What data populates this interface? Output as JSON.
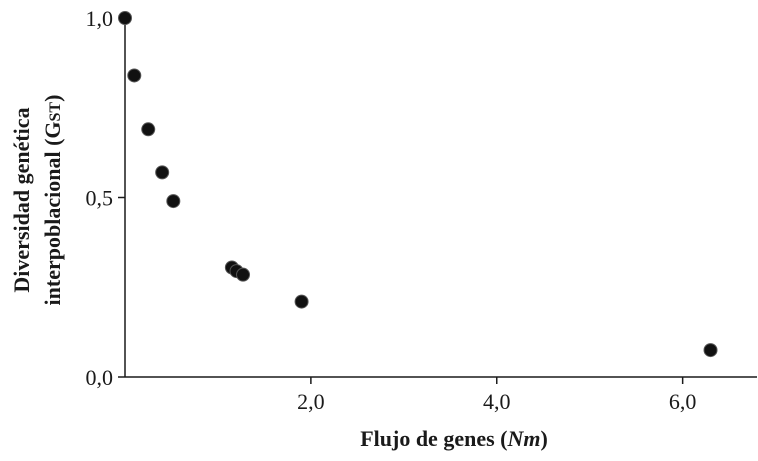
{
  "chart_data": {
    "type": "scatter",
    "xlabel": "Flujo de genes (Nm)",
    "xlabel_parts": {
      "text": "Flujo de genes (",
      "italic": "Nm",
      "close": ")"
    },
    "ylabel_line1": "Diversidad genética",
    "ylabel_line2_prefix": "interpoblacional (",
    "ylabel_symbol_main": "G",
    "ylabel_symbol_sub": "ST",
    "ylabel_line2_suffix": ")",
    "xlim": [
      0,
      6.8
    ],
    "ylim": [
      0,
      1.0
    ],
    "x_ticks": [
      {
        "value": 2.0,
        "label": "2,0"
      },
      {
        "value": 4.0,
        "label": "4,0"
      },
      {
        "value": 6.0,
        "label": "6,0"
      }
    ],
    "y_ticks": [
      {
        "value": 0.0,
        "label": "0,0"
      },
      {
        "value": 0.5,
        "label": "0,5"
      },
      {
        "value": 1.0,
        "label": "1,0"
      }
    ],
    "points": [
      {
        "x": 0.0,
        "y": 1.0
      },
      {
        "x": 0.1,
        "y": 0.84
      },
      {
        "x": 0.25,
        "y": 0.69
      },
      {
        "x": 0.4,
        "y": 0.57
      },
      {
        "x": 0.52,
        "y": 0.49
      },
      {
        "x": 1.15,
        "y": 0.305
      },
      {
        "x": 1.2,
        "y": 0.295
      },
      {
        "x": 1.27,
        "y": 0.285
      },
      {
        "x": 1.9,
        "y": 0.21
      },
      {
        "x": 6.3,
        "y": 0.075
      }
    ],
    "grid": false,
    "legend": "none"
  }
}
